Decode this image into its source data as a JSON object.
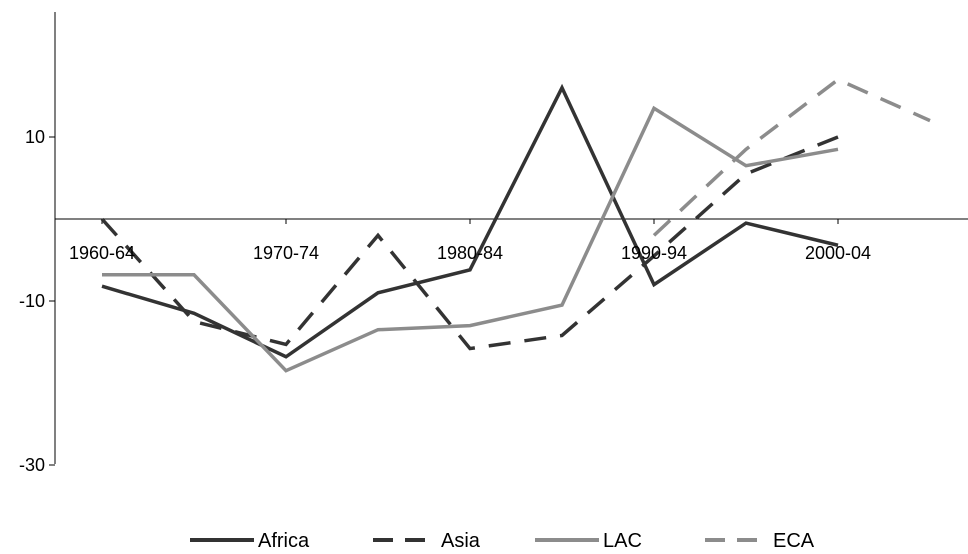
{
  "chart_data": {
    "type": "line",
    "categories": [
      "1960-64",
      "1965-69",
      "1970-74",
      "1975-79",
      "1980-84",
      "1985-89",
      "1990-94",
      "1995-99",
      "2000-04",
      "2005-09"
    ],
    "x_tick_labels": [
      "1960-64",
      "1970-74",
      "1980-84",
      "1990-94",
      "2000-04"
    ],
    "y_ticks": [
      10,
      -10,
      -30
    ],
    "ylim": [
      -30,
      25
    ],
    "title": "",
    "xlabel": "",
    "ylabel": "",
    "grid": false,
    "legend_position": "bottom",
    "series": [
      {
        "name": "Africa",
        "style": "solid",
        "color": "#333333",
        "values": [
          -8.2,
          -11.5,
          -16.8,
          -9.0,
          -6.2,
          16.0,
          -8.0,
          -0.5,
          -3.2,
          null
        ]
      },
      {
        "name": "Asia",
        "style": "dashed",
        "color": "#333333",
        "values": [
          0.0,
          -12.5,
          -15.3,
          -2.0,
          -15.8,
          -14.2,
          -4.5,
          5.5,
          10.0,
          null
        ]
      },
      {
        "name": "LAC",
        "style": "solid",
        "color": "#8c8c8c",
        "values": [
          -6.8,
          -6.8,
          -18.5,
          -13.5,
          -13.0,
          -10.5,
          13.5,
          6.5,
          8.5,
          null
        ]
      },
      {
        "name": "ECA",
        "style": "dashed",
        "color": "#8c8c8c",
        "values": [
          null,
          null,
          null,
          null,
          null,
          null,
          -2.0,
          8.5,
          17.0,
          12.0
        ]
      }
    ]
  }
}
